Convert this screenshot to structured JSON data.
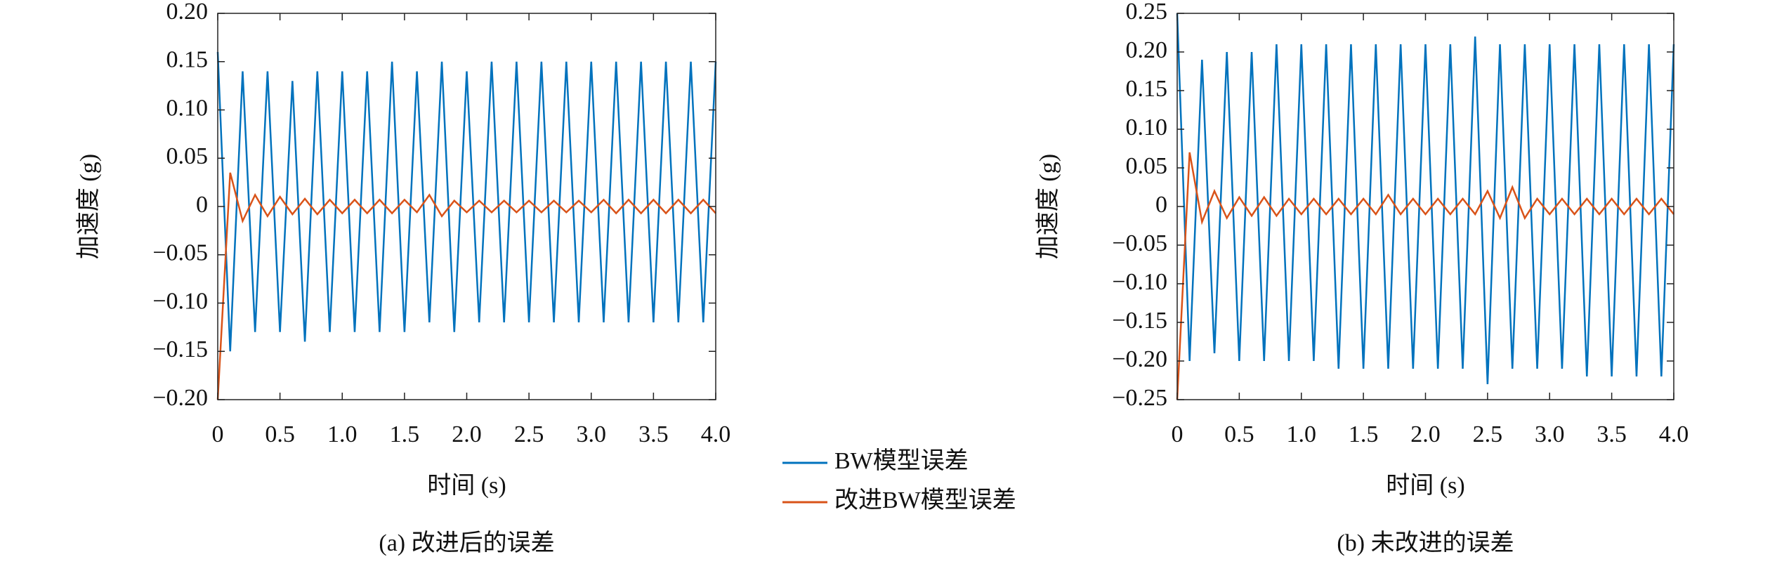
{
  "chart_data": [
    {
      "type": "line",
      "caption": "(a) 改进后的误差",
      "xlabel": "时间 (s)",
      "ylabel": "加速度 (g)",
      "x": [
        0,
        0.1,
        0.2,
        0.3,
        0.4,
        0.5,
        0.6,
        0.7,
        0.8,
        0.9,
        1.0,
        1.1,
        1.2,
        1.3,
        1.4,
        1.5,
        1.6,
        1.7,
        1.8,
        1.9,
        2.0,
        2.1,
        2.2,
        2.3,
        2.4,
        2.5,
        2.6,
        2.7,
        2.8,
        2.9,
        3.0,
        3.1,
        3.2,
        3.3,
        3.4,
        3.5,
        3.6,
        3.7,
        3.8,
        3.9,
        4.0
      ],
      "series": [
        {
          "name": "BW模型误差",
          "color": "#0072bd",
          "values": [
            0.16,
            -0.15,
            0.14,
            -0.13,
            0.14,
            -0.13,
            0.13,
            -0.14,
            0.14,
            -0.13,
            0.14,
            -0.13,
            0.14,
            -0.13,
            0.15,
            -0.13,
            0.14,
            -0.12,
            0.15,
            -0.13,
            0.14,
            -0.12,
            0.15,
            -0.12,
            0.15,
            -0.12,
            0.15,
            -0.12,
            0.15,
            -0.12,
            0.15,
            -0.12,
            0.15,
            -0.12,
            0.15,
            -0.12,
            0.15,
            -0.12,
            0.15,
            -0.12,
            0.15
          ]
        },
        {
          "name": "改进BW模型误差",
          "color": "#d95319",
          "values": [
            -0.2,
            0.035,
            -0.015,
            0.012,
            -0.01,
            0.01,
            -0.008,
            0.008,
            -0.008,
            0.007,
            -0.007,
            0.007,
            -0.007,
            0.007,
            -0.007,
            0.007,
            -0.006,
            0.012,
            -0.01,
            0.006,
            -0.006,
            0.006,
            -0.006,
            0.006,
            -0.006,
            0.006,
            -0.006,
            0.006,
            -0.006,
            0.006,
            -0.006,
            0.007,
            -0.007,
            0.007,
            -0.007,
            0.007,
            -0.007,
            0.007,
            -0.007,
            0.007,
            -0.007
          ]
        }
      ],
      "xlim": [
        0,
        4.0
      ],
      "xticks": [
        0,
        0.5,
        {
          "value": 1,
          "label": "1.0"
        },
        1.5,
        {
          "value": 2,
          "label": "2.0"
        },
        2.5,
        {
          "value": 3,
          "label": "3.0"
        },
        3.5,
        {
          "value": 4,
          "label": "4.0"
        }
      ],
      "ylim": [
        -0.2,
        0.2
      ],
      "yticks": [
        {
          "value": -0.2,
          "label": "−0.20"
        },
        {
          "value": -0.15,
          "label": "−0.15"
        },
        {
          "value": -0.1,
          "label": "−0.10"
        },
        {
          "value": -0.05,
          "label": "−0.05"
        },
        0,
        {
          "value": 0.05,
          "label": "0.05"
        },
        {
          "value": 0.1,
          "label": "0.10"
        },
        {
          "value": 0.15,
          "label": "0.15"
        },
        {
          "value": 0.2,
          "label": "0.20"
        }
      ]
    },
    {
      "type": "line",
      "caption": "(b) 未改进的误差",
      "xlabel": "时间 (s)",
      "ylabel": "加速度 (g)",
      "x": [
        0,
        0.1,
        0.2,
        0.3,
        0.4,
        0.5,
        0.6,
        0.7,
        0.8,
        0.9,
        1.0,
        1.1,
        1.2,
        1.3,
        1.4,
        1.5,
        1.6,
        1.7,
        1.8,
        1.9,
        2.0,
        2.1,
        2.2,
        2.3,
        2.4,
        2.5,
        2.6,
        2.7,
        2.8,
        2.9,
        3.0,
        3.1,
        3.2,
        3.3,
        3.4,
        3.5,
        3.6,
        3.7,
        3.8,
        3.9,
        4.0
      ],
      "series": [
        {
          "color": "#0072bd",
          "values": [
            0.25,
            -0.2,
            0.19,
            -0.19,
            0.2,
            -0.2,
            0.2,
            -0.2,
            0.21,
            -0.2,
            0.21,
            -0.2,
            0.21,
            -0.21,
            0.21,
            -0.21,
            0.21,
            -0.21,
            0.21,
            -0.21,
            0.21,
            -0.21,
            0.21,
            -0.21,
            0.22,
            -0.23,
            0.21,
            -0.21,
            0.21,
            -0.21,
            0.21,
            -0.21,
            0.21,
            -0.22,
            0.21,
            -0.22,
            0.21,
            -0.22,
            0.21,
            -0.22,
            0.21
          ]
        },
        {
          "color": "#d95319",
          "values": [
            -0.25,
            0.07,
            -0.02,
            0.02,
            -0.015,
            0.012,
            -0.012,
            0.012,
            -0.012,
            0.01,
            -0.01,
            0.01,
            -0.01,
            0.01,
            -0.01,
            0.01,
            -0.01,
            0.015,
            -0.01,
            0.01,
            -0.01,
            0.01,
            -0.01,
            0.01,
            -0.01,
            0.02,
            -0.015,
            0.025,
            -0.015,
            0.01,
            -0.01,
            0.01,
            -0.01,
            0.01,
            -0.01,
            0.01,
            -0.01,
            0.01,
            -0.01,
            0.01,
            -0.01
          ]
        }
      ],
      "xlim": [
        0,
        4.0
      ],
      "xticks": [
        0,
        0.5,
        {
          "value": 1,
          "label": "1.0"
        },
        1.5,
        {
          "value": 2,
          "label": "2.0"
        },
        2.5,
        {
          "value": 3,
          "label": "3.0"
        },
        3.5,
        {
          "value": 4,
          "label": "4.0"
        }
      ],
      "ylim": [
        -0.25,
        0.25
      ],
      "yticks": [
        {
          "value": -0.25,
          "label": "−0.25"
        },
        {
          "value": -0.2,
          "label": "−0.20"
        },
        {
          "value": -0.15,
          "label": "−0.15"
        },
        {
          "value": -0.1,
          "label": "−0.10"
        },
        {
          "value": -0.05,
          "label": "−0.05"
        },
        0,
        {
          "value": 0.05,
          "label": "0.05"
        },
        {
          "value": 0.1,
          "label": "0.10"
        },
        {
          "value": 0.15,
          "label": "0.15"
        },
        {
          "value": 0.2,
          "label": "0.20"
        },
        {
          "value": 0.25,
          "label": "0.25"
        }
      ]
    }
  ]
}
